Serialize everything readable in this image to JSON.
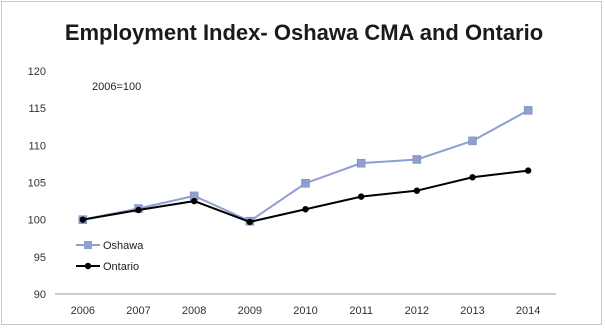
{
  "chart_data": {
    "type": "line",
    "title": "Employment Index- Oshawa CMA and Ontario",
    "annotation": "2006=100",
    "x": [
      "2006",
      "2007",
      "2008",
      "2009",
      "2010",
      "2011",
      "2012",
      "2013",
      "2014"
    ],
    "y_ticks": [
      "90",
      "95",
      "100",
      "105",
      "110",
      "115",
      "120"
    ],
    "ylim": [
      90,
      120
    ],
    "grid": false,
    "legend_position": "bottom-left",
    "series": [
      {
        "name": "Oshawa",
        "color": "#8e9fd0",
        "marker": "square",
        "values": [
          100,
          101.5,
          103.2,
          99.8,
          104.9,
          107.6,
          108.1,
          110.6,
          114.7
        ]
      },
      {
        "name": "Ontario",
        "color": "#000000",
        "marker": "circle",
        "values": [
          100,
          101.3,
          102.5,
          99.7,
          101.4,
          103.1,
          103.9,
          105.7,
          106.6
        ]
      }
    ]
  }
}
